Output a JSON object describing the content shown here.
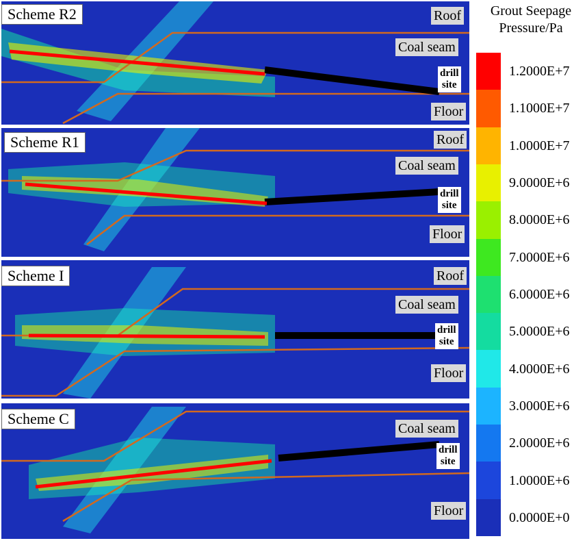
{
  "legend": {
    "title_line1": "Grout Seepage",
    "title_line2": "Pressure/Pa",
    "ticks": [
      "1.2000E+7",
      "1.1000E+7",
      "1.0000E+7",
      "9.0000E+6",
      "8.0000E+6",
      "7.0000E+6",
      "6.0000E+6",
      "5.0000E+6",
      "4.0000E+6",
      "3.0000E+6",
      "2.0000E+6",
      "1.0000E+6",
      "0.0000E+0"
    ],
    "colors": [
      "#ff0000",
      "#ff5a00",
      "#ffb400",
      "#e8f000",
      "#9af000",
      "#3ee820",
      "#1ee070",
      "#14dca0",
      "#20e8e8",
      "#1cb4ff",
      "#1478f0",
      "#1c46dc",
      "#1a2fb8"
    ]
  },
  "panels": [
    {
      "scheme": "Scheme R2",
      "roof": "Roof",
      "coal": "Coal seam",
      "site_line1": "drill",
      "site_line2": "site",
      "floor": "Floor"
    },
    {
      "scheme": "Scheme R1",
      "roof": "Roof",
      "coal": "Coal seam",
      "site_line1": "drill",
      "site_line2": "site",
      "floor": "Floor"
    },
    {
      "scheme": "Scheme I",
      "roof": "Roof",
      "coal": "Coal seam",
      "site_line1": "drill",
      "site_line2": "site",
      "floor": "Floor"
    },
    {
      "scheme": "Scheme C",
      "coal": "Coal seam",
      "site_line1": "drill",
      "site_line2": "site",
      "floor": "Floor"
    }
  ]
}
